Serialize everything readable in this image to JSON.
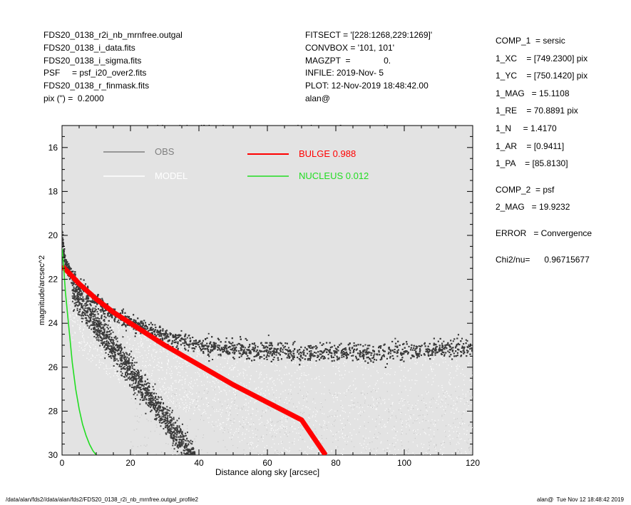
{
  "header": {
    "left": [
      "FDS20_0138_r2i_nb_mrnfree.outgal",
      "FDS20_0138_i_data.fits",
      "FDS20_0138_i_sigma.fits",
      "PSF     = psf_i20_over2.fits",
      "FDS20_0138_r_finmask.fits",
      "pix (\") =  0.2000"
    ],
    "middle": [
      "FITSECT = '[228:1268,229:1269]'",
      "CONVBOX = '101, 101'",
      "MAGZPT  =              0.",
      "INFILE: 2019-Nov- 5",
      "PLOT: 12-Nov-2019 18:48:42.00",
      "alan@"
    ]
  },
  "params": {
    "comp1": [
      "COMP_1  = sersic",
      "1_XC    = [749.2300] pix",
      "1_YC    = [750.1420] pix",
      "1_MAG   = 15.1108",
      "1_RE    = 70.8891 pix",
      "1_N     = 1.4170",
      "1_AR    = [0.9411]",
      "1_PA    = [85.8130]"
    ],
    "comp2": [
      "COMP_2  = psf",
      "2_MAG   = 19.9232"
    ],
    "error": "ERROR   = Convergence",
    "chi2": "Chi2/nu=      0.96715677"
  },
  "footer": {
    "left": "/data/alan/fds2//data/alan/fds2/FDS20_0138_r2i_nb_mrnfree.outgal_profile2",
    "right": "alan@  Tue Nov 12 18:48:42 2019"
  },
  "colors": {
    "background": "#e3e3e3",
    "obs": "#808080",
    "model": "#ffffff",
    "bulge": "#ff0000",
    "nucleus": "#22dd22",
    "points": "#3a3a3a"
  },
  "chart_data": {
    "type": "scatter",
    "title": "/data/alan/fds2/FDS20_0138_r2i_nb_mrnfree.outgal",
    "xlabel": "Distance along sky [arcsec]",
    "ylabel": "magnitude/arcsec^2",
    "xlim": [
      0,
      120
    ],
    "ylim": [
      30,
      15
    ],
    "y_inverted": true,
    "xticks": [
      0,
      20,
      40,
      60,
      80,
      100,
      120
    ],
    "yticks": [
      16,
      18,
      20,
      22,
      24,
      26,
      28,
      30
    ],
    "legend": [
      {
        "label": "OBS",
        "color": "#808080"
      },
      {
        "label": "MODEL",
        "color": "#ffffff"
      },
      {
        "label": "BULGE  0.988",
        "color": "#ff0000"
      },
      {
        "label": "NUCLEUS  0.012",
        "color": "#22dd22"
      }
    ],
    "series": [
      {
        "name": "BULGE  0.988",
        "x": [
          0,
          2,
          5,
          10,
          15,
          20,
          30,
          40,
          50,
          60,
          70,
          77
        ],
        "y": [
          21.4,
          21.7,
          22.2,
          22.9,
          23.5,
          24.0,
          25.0,
          25.9,
          26.8,
          27.6,
          28.4,
          30.0
        ]
      },
      {
        "name": "NUCLEUS  0.012",
        "x": [
          0,
          0.5,
          1,
          2,
          3,
          4,
          5,
          6,
          7,
          8,
          9,
          10
        ],
        "y": [
          20.6,
          21.5,
          22.6,
          24.2,
          25.8,
          27.0,
          27.9,
          28.6,
          29.1,
          29.5,
          29.8,
          30.0
        ]
      },
      {
        "name": "OBS",
        "x": [
          0,
          1,
          3,
          5,
          10,
          15,
          20,
          25,
          30,
          40,
          50,
          60,
          80,
          100,
          120
        ],
        "y": [
          20.0,
          21.2,
          21.9,
          22.3,
          23.0,
          23.6,
          24.0,
          24.3,
          24.6,
          25.0,
          25.2,
          25.3,
          25.4,
          25.3,
          25.1
        ]
      }
    ]
  }
}
